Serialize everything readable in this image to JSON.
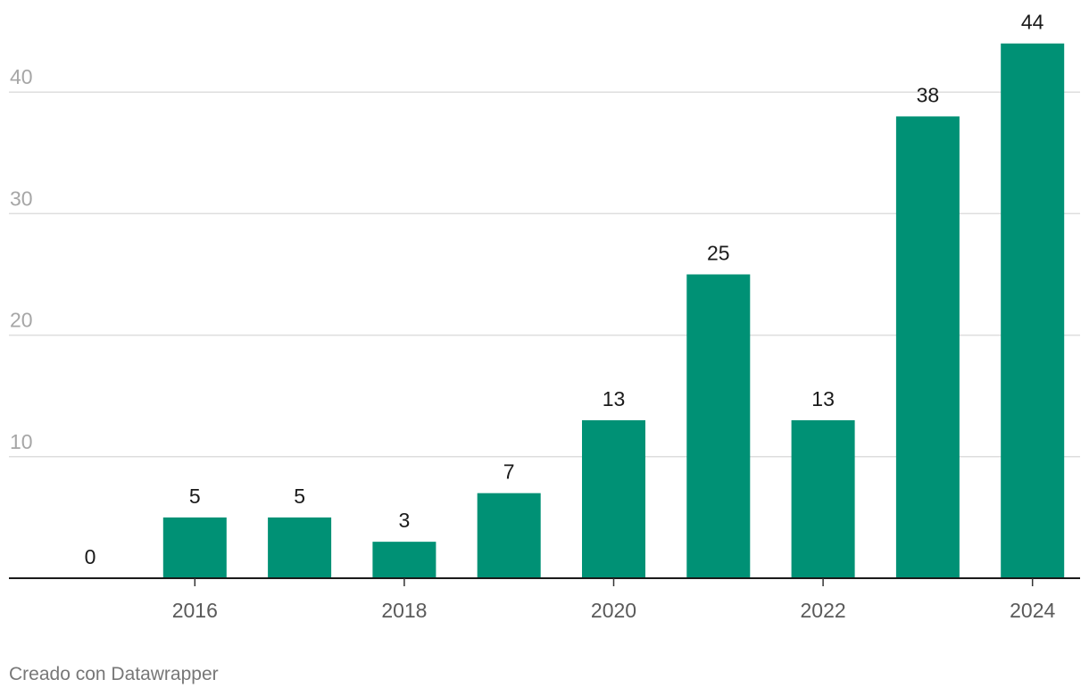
{
  "chart_data": {
    "type": "bar",
    "categories": [
      "2015",
      "2016",
      "2017",
      "2018",
      "2019",
      "2020",
      "2021",
      "2022",
      "2023",
      "2024"
    ],
    "values": [
      0,
      5,
      5,
      3,
      7,
      13,
      25,
      13,
      38,
      44
    ],
    "x_tick_labels": [
      "2016",
      "2018",
      "2020",
      "2022",
      "2024"
    ],
    "y_ticks": [
      10,
      20,
      30,
      40
    ],
    "ylim": [
      0,
      44
    ],
    "grid": true,
    "bar_color": "#009175",
    "title": "",
    "xlabel": "",
    "ylabel": ""
  },
  "footer": {
    "credit": "Creado con Datawrapper"
  }
}
